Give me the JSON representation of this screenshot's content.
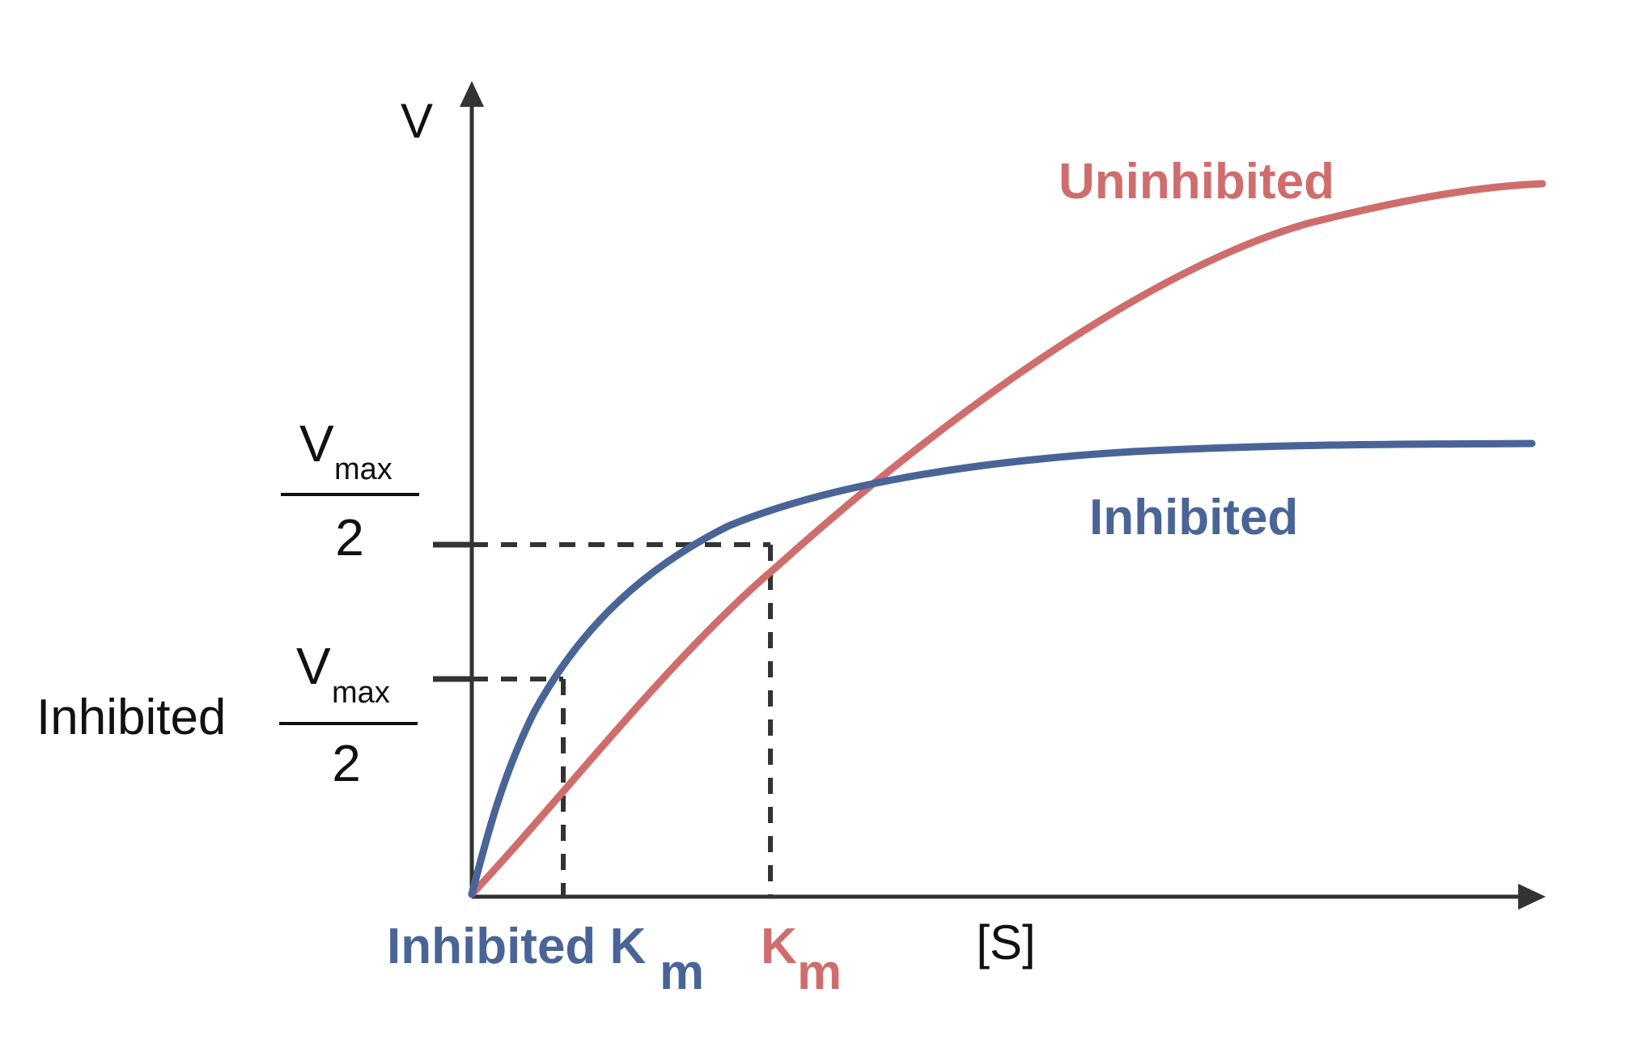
{
  "colors": {
    "uninhibited": "#cf6d6d",
    "inhibited": "#4a6498",
    "axis": "#333333",
    "text": "#111111"
  },
  "axes": {
    "y_label": "V",
    "x_label": "[S]"
  },
  "curve_labels": {
    "uninhibited": "Uninhibited",
    "inhibited": "Inhibited"
  },
  "y_markers": {
    "vmax_half": {
      "symbol": "V",
      "subscript": "max",
      "denominator": "2"
    },
    "inhibited_vmax_half": {
      "prefix": "Inhibited",
      "symbol": "V",
      "subscript": "max",
      "denominator": "2"
    }
  },
  "x_markers": {
    "inhibited_km": {
      "text": "Inhibited K",
      "subscript": "m"
    },
    "km": {
      "text": "K",
      "subscript": "m"
    }
  }
}
